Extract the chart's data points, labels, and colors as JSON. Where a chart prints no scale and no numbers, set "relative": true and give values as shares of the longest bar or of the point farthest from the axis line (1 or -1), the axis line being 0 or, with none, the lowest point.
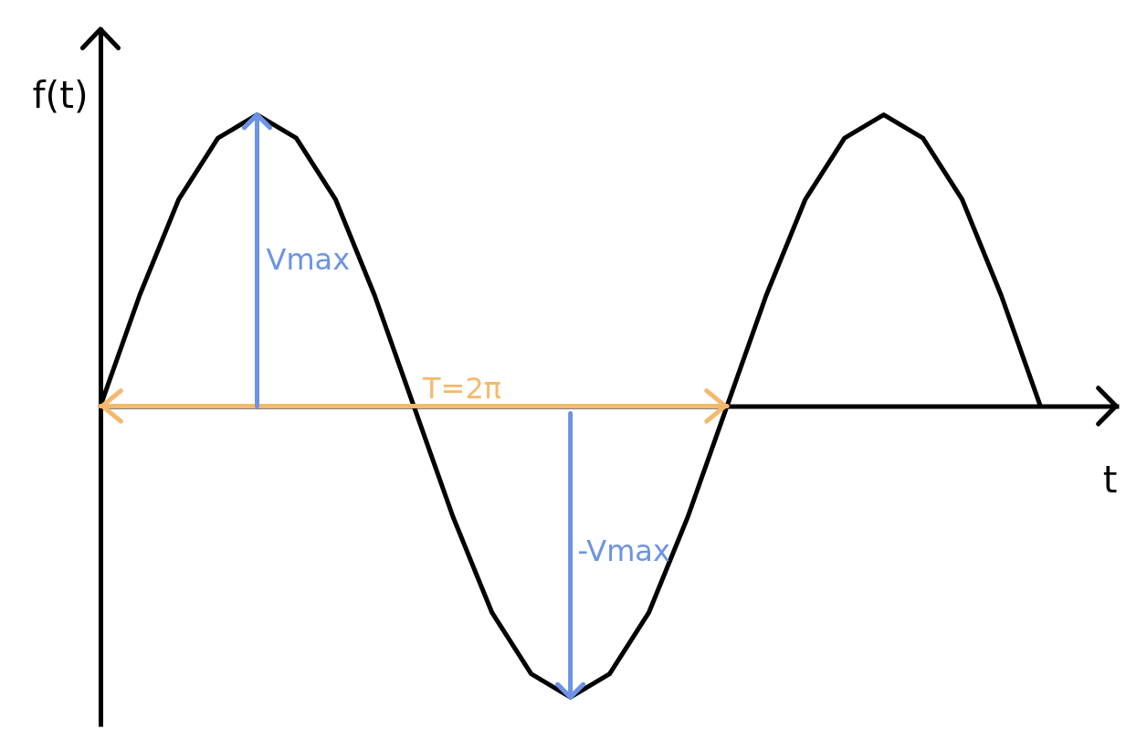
{
  "chart_data": {
    "type": "line",
    "relative": true,
    "xlabel": "t",
    "ylabel": "f(t)",
    "categories": [
      null,
      null,
      null,
      null,
      null,
      null,
      null,
      null,
      null,
      null,
      null,
      null,
      null,
      null,
      null,
      null,
      null,
      null,
      null,
      null,
      null,
      null,
      null,
      null,
      null,
      null,
      null
    ],
    "series": [
      {
        "color": "#000000",
        "values": [
          0,
          0.38,
          0.71,
          0.92,
          1,
          0.92,
          0.71,
          0.38,
          0,
          -0.38,
          -0.71,
          -0.92,
          -1,
          -0.92,
          -0.71,
          -0.38,
          0,
          0.38,
          0.71,
          0.92,
          1,
          0.92,
          0.71,
          0.38,
          0,
          null,
          null
        ]
      },
      {
        "name": "T=2π",
        "color": "#f5b96b",
        "values": [
          0,
          0,
          0,
          0,
          0,
          0,
          0,
          0,
          0,
          0,
          0,
          0,
          0,
          0,
          0,
          0,
          0,
          null,
          null,
          null,
          null,
          null,
          null,
          null,
          null,
          null,
          null
        ]
      }
    ],
    "annotations": [
      "Vmax",
      "-Vmax"
    ],
    "grid": false,
    "marker": "none",
    "line_style": "solid"
  }
}
